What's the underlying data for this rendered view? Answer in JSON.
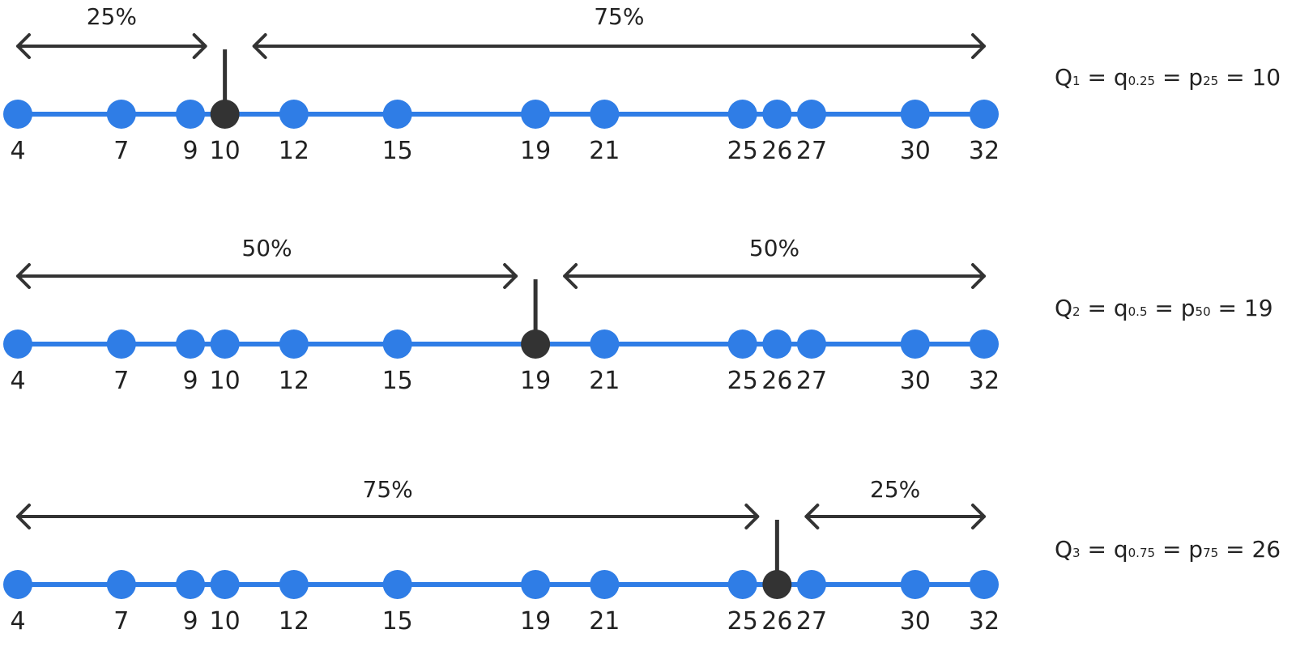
{
  "values": [
    4,
    7,
    9,
    10,
    12,
    15,
    19,
    21,
    25,
    26,
    27,
    30,
    32
  ],
  "rows": [
    {
      "marker_value": 10,
      "left_percent": "25%",
      "right_percent": "75%",
      "formula": {
        "q_main": "Q",
        "q_sub": "1",
        "eq1": " = q",
        "mid_sub": "0.25",
        "eq2": " = p",
        "p_sub": "25",
        "result": " = 10"
      }
    },
    {
      "marker_value": 19,
      "left_percent": "50%",
      "right_percent": "50%",
      "formula": {
        "q_main": "Q",
        "q_sub": "2",
        "eq1": " = q",
        "mid_sub": "0.5",
        "eq2": " = p",
        "p_sub": "50",
        "result": " = 19"
      }
    },
    {
      "marker_value": 26,
      "left_percent": "75%",
      "right_percent": "25%",
      "formula": {
        "q_main": "Q",
        "q_sub": "3",
        "eq1": " = q",
        "mid_sub": "0.75",
        "eq2": " = p",
        "p_sub": "75",
        "result": " = 26"
      }
    }
  ],
  "colors": {
    "line": "#2f7de6",
    "marker": "#333333",
    "text": "#222222"
  }
}
